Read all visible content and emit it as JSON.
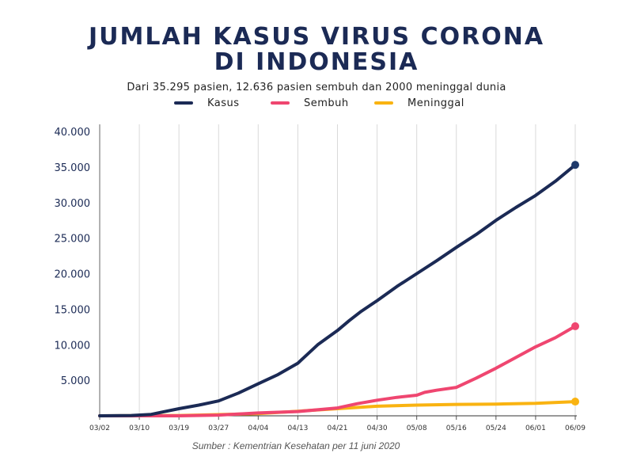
{
  "title": {
    "line1": "JUMLAH KASUS VIRUS CORONA",
    "line2": "DI INDONESIA"
  },
  "subtitle": "Dari 35.295 pasien, 12.636 pasien sembuh dan 2000 meninggal dunia",
  "source": "Sumber : Kementrian Kesehatan per 11 juni 2020",
  "chart_data": {
    "type": "line",
    "title": "JUMLAH KASUS VIRUS CORONA DI INDONESIA",
    "xlabel": "",
    "ylabel": "",
    "x_ticks": [
      "03/02",
      "03/10",
      "03/19",
      "03/27",
      "04/04",
      "04/13",
      "04/21",
      "04/30",
      "05/08",
      "05/16",
      "05/24",
      "06/01",
      "06/09"
    ],
    "y_ticks": [
      "5.000",
      "10.000",
      "15.000",
      "20.000",
      "25.000",
      "30.000",
      "35.000",
      "40.000"
    ],
    "y_tick_values": [
      5000,
      10000,
      15000,
      20000,
      25000,
      30000,
      35000,
      40000
    ],
    "ylim": [
      0,
      40000
    ],
    "xlim": [
      0,
      12
    ],
    "grid": true,
    "legend_position": "top",
    "series": [
      {
        "name": "Kasus",
        "color": "#1b2a55",
        "x": [
          0,
          0.8,
          1.3,
          1.6,
          2.0,
          2.5,
          3.0,
          3.5,
          4.0,
          4.5,
          5.0,
          5.5,
          6.0,
          6.3,
          6.6,
          7.0,
          7.5,
          8.0,
          8.5,
          9.0,
          9.5,
          10.0,
          10.5,
          11.0,
          11.5,
          12.0
        ],
        "y": [
          0,
          50,
          200,
          550,
          1000,
          1500,
          2100,
          3200,
          4500,
          5800,
          7400,
          10000,
          12000,
          13400,
          14700,
          16200,
          18200,
          20000,
          21800,
          23700,
          25500,
          27500,
          29300,
          31000,
          33000,
          35300
        ]
      },
      {
        "name": "Sembuh",
        "color": "#ef4670",
        "x": [
          0,
          2.0,
          3.0,
          4.0,
          5.0,
          6.0,
          6.5,
          7.0,
          7.5,
          8.0,
          8.2,
          8.5,
          9.0,
          9.5,
          10.0,
          10.5,
          11.0,
          11.5,
          12.0
        ],
        "y": [
          0,
          0,
          100,
          400,
          600,
          1100,
          1700,
          2200,
          2600,
          2900,
          3300,
          3600,
          4000,
          5300,
          6700,
          8200,
          9700,
          11000,
          12600
        ]
      },
      {
        "name": "Meninggal",
        "color": "#f9b311",
        "x": [
          0,
          2.0,
          4.0,
          5.0,
          6.0,
          7.0,
          8.0,
          9.0,
          10.0,
          11.0,
          12.0
        ],
        "y": [
          0,
          50,
          300,
          650,
          1000,
          1350,
          1500,
          1600,
          1650,
          1750,
          2000
        ]
      }
    ]
  }
}
